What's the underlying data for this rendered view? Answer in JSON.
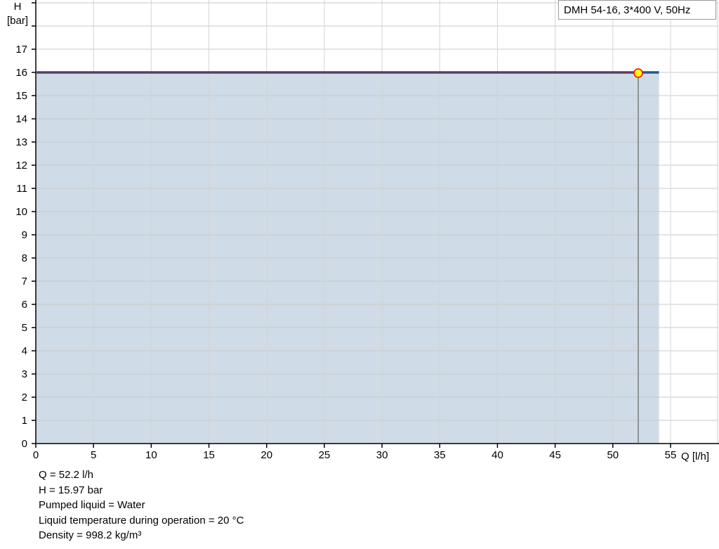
{
  "chart_data": {
    "type": "area",
    "xlabel": "Q [l/h]",
    "ylabel_line1": "H",
    "ylabel_line2": "[bar]",
    "xlim": [
      0,
      55
    ],
    "ylim": [
      0,
      19
    ],
    "x_ticks": [
      0,
      5,
      10,
      15,
      20,
      25,
      30,
      35,
      40,
      45,
      50,
      55
    ],
    "y_ticks": [
      0,
      1,
      2,
      3,
      4,
      5,
      6,
      7,
      8,
      9,
      10,
      11,
      12,
      13,
      14,
      15,
      16,
      17
    ],
    "grid": true,
    "legend": "top-right",
    "series": [
      {
        "name": "DMH 54-16, 3*400 V, 50Hz",
        "x": [
          0,
          54
        ],
        "y": [
          16,
          16
        ],
        "color": "#1f5a94",
        "fill": "#cfdbe6"
      }
    ],
    "operating_point": {
      "x": 52.2,
      "y": 15.97,
      "color": "#ffff00",
      "border": "#ff0000"
    }
  },
  "info": [
    "Q = 52.2 l/h",
    "H = 15.97 bar",
    "Pumped liquid = Water",
    "Liquid temperature during operation = 20 °C",
    "Density = 998.2 kg/m³"
  ]
}
